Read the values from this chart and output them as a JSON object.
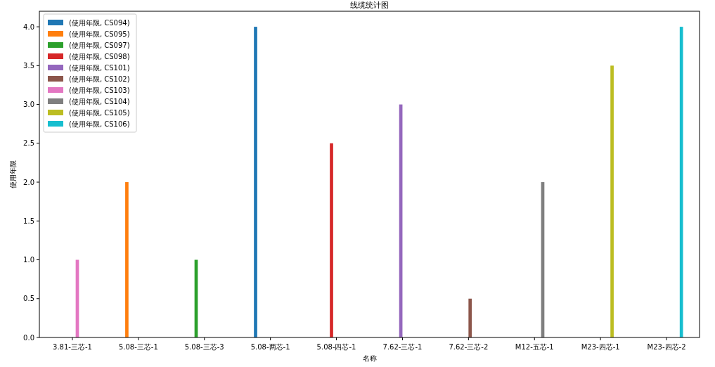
{
  "chart_data": {
    "type": "bar",
    "title": "线缆统计图",
    "xlabel": "名称",
    "ylabel": "使用年限",
    "categories": [
      "3.81-三芯-1",
      "5.08-三芯-1",
      "5.08-三芯-3",
      "5.08-两芯-1",
      "5.08-四芯-1",
      "7.62-三芯-1",
      "7.62-三芯-2",
      "M12-五芯-1",
      "M23-四芯-1",
      "M23-四芯-2"
    ],
    "series": [
      {
        "name": "(使用年限, CS094)",
        "color": "#1f77b4",
        "values": [
          null,
          null,
          null,
          4.0,
          null,
          null,
          null,
          null,
          null,
          null
        ]
      },
      {
        "name": "(使用年限, CS095)",
        "color": "#ff7f0e",
        "values": [
          null,
          2.0,
          null,
          null,
          null,
          null,
          null,
          null,
          null,
          null
        ]
      },
      {
        "name": "(使用年限, CS097)",
        "color": "#2ca02c",
        "values": [
          null,
          null,
          1.0,
          null,
          null,
          null,
          null,
          null,
          null,
          null
        ]
      },
      {
        "name": "(使用年限, CS098)",
        "color": "#d62728",
        "values": [
          null,
          null,
          null,
          null,
          2.5,
          null,
          null,
          null,
          null,
          null
        ]
      },
      {
        "name": "(使用年限, CS101)",
        "color": "#9467bd",
        "values": [
          null,
          null,
          null,
          null,
          null,
          3.0,
          null,
          null,
          null,
          null
        ]
      },
      {
        "name": "(使用年限, CS102)",
        "color": "#8c564b",
        "values": [
          null,
          null,
          null,
          null,
          null,
          null,
          0.5,
          null,
          null,
          null
        ]
      },
      {
        "name": "(使用年限, CS103)",
        "color": "#e377c2",
        "values": [
          1.0,
          null,
          null,
          null,
          null,
          null,
          null,
          null,
          null,
          null
        ]
      },
      {
        "name": "(使用年限, CS104)",
        "color": "#7f7f7f",
        "values": [
          null,
          null,
          null,
          null,
          null,
          null,
          null,
          2.0,
          null,
          null
        ]
      },
      {
        "name": "(使用年限, CS105)",
        "color": "#bcbd22",
        "values": [
          null,
          null,
          null,
          null,
          null,
          null,
          null,
          null,
          3.5,
          null
        ]
      },
      {
        "name": "(使用年限, CS106)",
        "color": "#17becf",
        "values": [
          null,
          null,
          null,
          null,
          null,
          null,
          null,
          null,
          null,
          4.0
        ]
      }
    ],
    "ylim": [
      0,
      4.2
    ],
    "yticks": [
      {
        "value": 0,
        "label": "0.0"
      },
      0.5,
      {
        "value": 1,
        "label": "1.0"
      },
      1.5,
      {
        "value": 2,
        "label": "2.0"
      },
      2.5,
      {
        "value": 3,
        "label": "3.0"
      },
      3.5,
      {
        "value": 4,
        "label": "4.0"
      }
    ],
    "legend": "top left",
    "grid": false
  }
}
